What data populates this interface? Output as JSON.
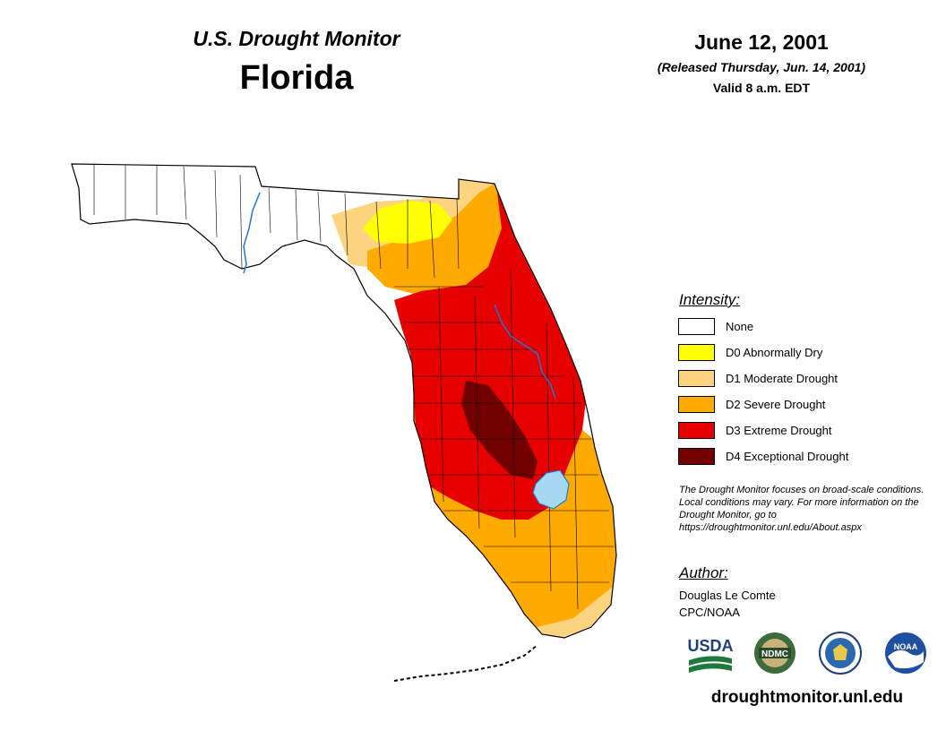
{
  "header": {
    "subtitle": "U.S. Drought Monitor",
    "title": "Florida",
    "date": "June 12, 2001",
    "released": "(Released Thursday, Jun. 14, 2001)",
    "valid": "Valid 8 a.m. EDT"
  },
  "legend": {
    "title": "Intensity:",
    "items": [
      {
        "label": "None",
        "color": "#ffffff"
      },
      {
        "label": "D0 Abnormally Dry",
        "color": "#ffff00"
      },
      {
        "label": "D1 Moderate Drought",
        "color": "#fcd37f"
      },
      {
        "label": "D2 Severe Drought",
        "color": "#ffaa00"
      },
      {
        "label": "D3 Extreme Drought",
        "color": "#e60000"
      },
      {
        "label": "D4 Exceptional Drought",
        "color": "#730000"
      }
    ]
  },
  "note": "The Drought Monitor focuses on broad-scale conditions. Local conditions may vary. For more information on the Drought Monitor, go to https://droughtmonitor.unl.edu/About.aspx",
  "author": {
    "title": "Author:",
    "name": "Douglas Le Comte",
    "org": "CPC/NOAA"
  },
  "logos": {
    "usda": "USDA",
    "ndmc": "NDMC",
    "noaa": "NOAA"
  },
  "footer_url": "droughtmonitor.unl.edu",
  "colors": {
    "water": "#a6d8f2",
    "river": "#1e78dc",
    "county_line": "#000000"
  }
}
